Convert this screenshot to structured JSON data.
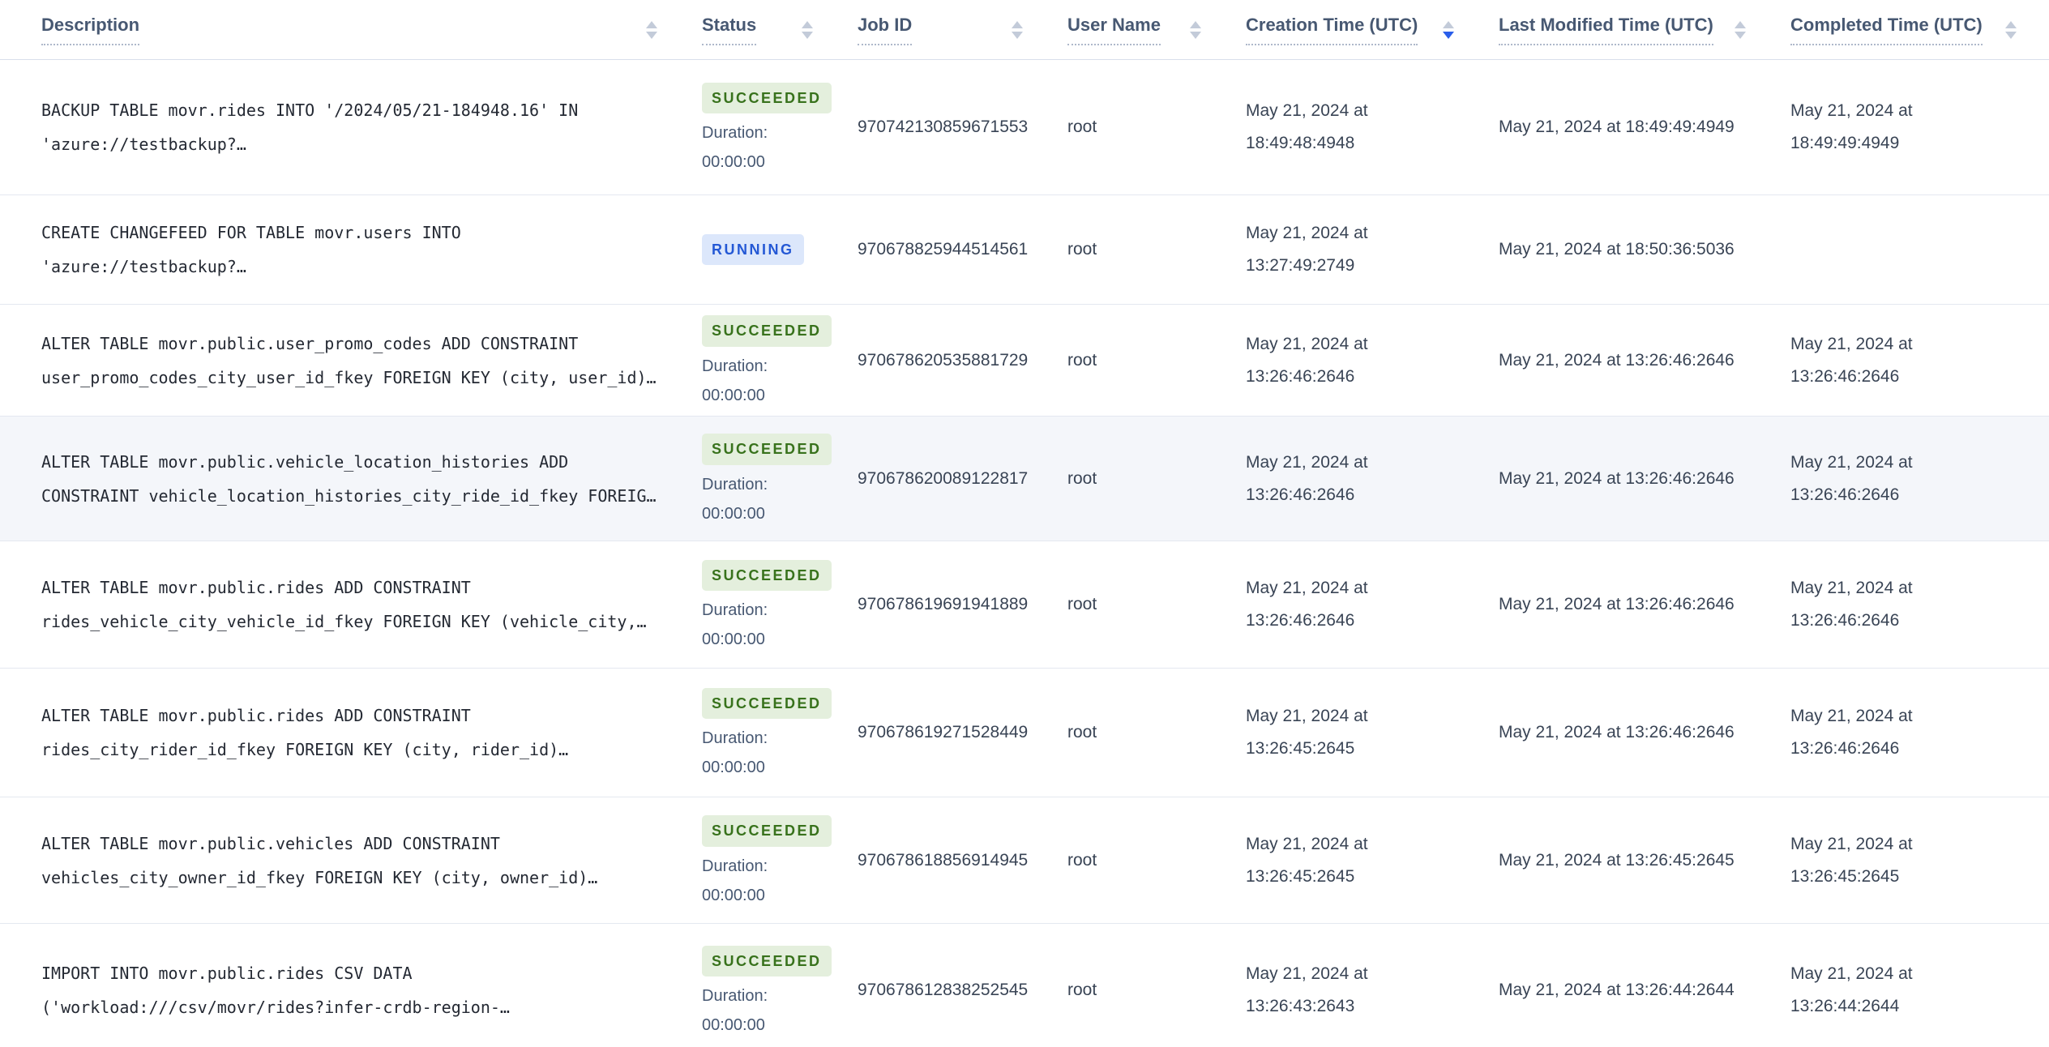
{
  "table": {
    "columns": [
      {
        "label": "Description",
        "sortable": true,
        "sort": "none"
      },
      {
        "label": "Status",
        "sortable": true,
        "sort": "none"
      },
      {
        "label": "Job ID",
        "sortable": true,
        "sort": "none"
      },
      {
        "label": "User Name",
        "sortable": true,
        "sort": "none"
      },
      {
        "label": "Creation Time (UTC)",
        "sortable": true,
        "sort": "desc"
      },
      {
        "label": "Last Modified Time (UTC)",
        "sortable": true,
        "sort": "none"
      },
      {
        "label": "Completed Time (UTC)",
        "sortable": true,
        "sort": "none"
      }
    ],
    "rows": [
      {
        "description": "BACKUP TABLE movr.rides INTO '/2024/05/21-184948.16' IN\n'azure://testbackup?…",
        "status": "SUCCEEDED",
        "duration_label": "Duration:",
        "duration": "00:00:00",
        "job_id": "970742130859671553",
        "user_name": "root",
        "creation_time": "May 21, 2024 at 18:49:48:4948",
        "last_modified_time": "May 21, 2024 at 18:49:49:4949",
        "completed_time": "May 21, 2024 at 18:49:49:4949"
      },
      {
        "description": "CREATE CHANGEFEED FOR TABLE movr.users INTO\n'azure://testbackup?…",
        "status": "RUNNING",
        "duration_label": "",
        "duration": "",
        "job_id": "970678825944514561",
        "user_name": "root",
        "creation_time": "May 21, 2024 at 13:27:49:2749",
        "last_modified_time": "May 21, 2024 at 18:50:36:5036",
        "completed_time": ""
      },
      {
        "description": "ALTER TABLE movr.public.user_promo_codes ADD CONSTRAINT\nuser_promo_codes_city_user_id_fkey FOREIGN KEY (city, user_id)…",
        "status": "SUCCEEDED",
        "duration_label": "Duration:",
        "duration": "00:00:00",
        "job_id": "970678620535881729",
        "user_name": "root",
        "creation_time": "May 21, 2024 at 13:26:46:2646",
        "last_modified_time": "May 21, 2024 at 13:26:46:2646",
        "completed_time": "May 21, 2024 at 13:26:46:2646"
      },
      {
        "description": "ALTER TABLE movr.public.vehicle_location_histories ADD\nCONSTRAINT vehicle_location_histories_city_ride_id_fkey FOREIG…",
        "status": "SUCCEEDED",
        "duration_label": "Duration:",
        "duration": "00:00:00",
        "job_id": "970678620089122817",
        "user_name": "root",
        "creation_time": "May 21, 2024 at 13:26:46:2646",
        "last_modified_time": "May 21, 2024 at 13:26:46:2646",
        "completed_time": "May 21, 2024 at 13:26:46:2646",
        "highlighted": true
      },
      {
        "description": "ALTER TABLE movr.public.rides ADD CONSTRAINT\nrides_vehicle_city_vehicle_id_fkey FOREIGN KEY (vehicle_city,…",
        "status": "SUCCEEDED",
        "duration_label": "Duration:",
        "duration": "00:00:00",
        "job_id": "970678619691941889",
        "user_name": "root",
        "creation_time": "May 21, 2024 at 13:26:46:2646",
        "last_modified_time": "May 21, 2024 at 13:26:46:2646",
        "completed_time": "May 21, 2024 at 13:26:46:2646"
      },
      {
        "description": "ALTER TABLE movr.public.rides ADD CONSTRAINT\nrides_city_rider_id_fkey FOREIGN KEY (city, rider_id)…",
        "status": "SUCCEEDED",
        "duration_label": "Duration:",
        "duration": "00:00:00",
        "job_id": "970678619271528449",
        "user_name": "root",
        "creation_time": "May 21, 2024 at 13:26:45:2645",
        "last_modified_time": "May 21, 2024 at 13:26:46:2646",
        "completed_time": "May 21, 2024 at 13:26:46:2646"
      },
      {
        "description": "ALTER TABLE movr.public.vehicles ADD CONSTRAINT\nvehicles_city_owner_id_fkey FOREIGN KEY (city, owner_id)…",
        "status": "SUCCEEDED",
        "duration_label": "Duration:",
        "duration": "00:00:00",
        "job_id": "970678618856914945",
        "user_name": "root",
        "creation_time": "May 21, 2024 at 13:26:45:2645",
        "last_modified_time": "May 21, 2024 at 13:26:45:2645",
        "completed_time": "May 21, 2024 at 13:26:45:2645"
      },
      {
        "description": "IMPORT INTO movr.public.rides CSV DATA\n('workload:///csv/movr/rides?infer-crdb-region-…",
        "status": "SUCCEEDED",
        "duration_label": "Duration:",
        "duration": "00:00:00",
        "job_id": "970678612838252545",
        "user_name": "root",
        "creation_time": "May 21, 2024 at 13:26:43:2643",
        "last_modified_time": "May 21, 2024 at 13:26:44:2644",
        "completed_time": "May 21, 2024 at 13:26:44:2644"
      }
    ]
  },
  "colors": {
    "header_text": "#475872",
    "body_text": "#394455",
    "description_text": "#242933",
    "row_divider": "#e4e8f0",
    "highlighted_row_bg": "#f4f6fa",
    "succeeded_badge_bg": "#e4efdd",
    "succeeded_badge_text": "#38721c",
    "running_badge_bg": "#dce7fb",
    "running_badge_text": "#2458d5",
    "sort_active": "#2a5eea",
    "sort_inactive": "#c3cbd9"
  }
}
